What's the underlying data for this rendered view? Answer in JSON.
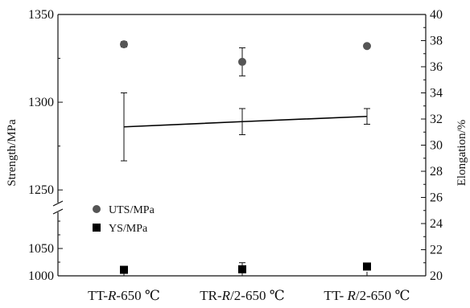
{
  "chart_data": {
    "type": "scatter",
    "categories": [
      {
        "prefix": "TT-",
        "italic": "R",
        "suffix": "-650 ℃"
      },
      {
        "prefix": "TR-",
        "italic": "R",
        "suffix": "/2-650 ℃"
      },
      {
        "prefix": "TT- ",
        "italic": "R",
        "suffix": "/2-650 ℃"
      }
    ],
    "y_left": {
      "label": "Strength/MPa",
      "lower_segment": {
        "range": [
          1000,
          1125
        ],
        "ticks": [
          "1000",
          "1050"
        ]
      },
      "upper_segment": {
        "range": [
          1240,
          1350
        ],
        "ticks": [
          "1250",
          "1300",
          "1350"
        ]
      },
      "broken": true
    },
    "y_right": {
      "label": "Elongation/%",
      "range": [
        20,
        40
      ],
      "ticks": [
        "20",
        "22",
        "24",
        "26",
        "28",
        "30",
        "32",
        "34",
        "36",
        "38",
        "40"
      ]
    },
    "series": [
      {
        "name": "UTS/MPa",
        "marker": "circle",
        "color": "#555555",
        "axis": "left",
        "values": [
          1333,
          1323,
          1332
        ],
        "errors": [
          1.5,
          8,
          1
        ]
      },
      {
        "name": "YS/MPa",
        "marker": "square",
        "color": "#000000",
        "axis": "left",
        "values": [
          1011,
          1012,
          1017
        ],
        "errors": [
          4,
          12,
          4
        ]
      },
      {
        "axis": "right",
        "marker": "none",
        "line": true,
        "color": "#000000",
        "values": [
          31.4,
          31.8,
          32.2
        ],
        "errors": [
          2.6,
          1.0,
          0.6
        ]
      }
    ],
    "legend_position": "center-left"
  }
}
